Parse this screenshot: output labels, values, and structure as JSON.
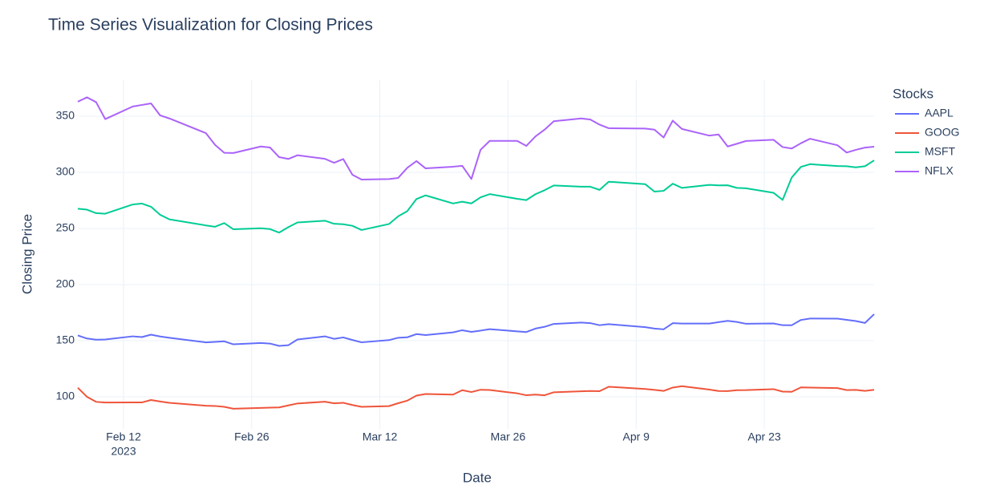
{
  "chart_data": {
    "type": "line",
    "title": "Time Series Visualization for Closing Prices",
    "x_label": "Date",
    "y_label": "Closing Price",
    "legend_title": "Stocks",
    "legend_position": "right",
    "grid": true,
    "x": [
      "2023-02-07",
      "2023-02-08",
      "2023-02-09",
      "2023-02-10",
      "2023-02-13",
      "2023-02-14",
      "2023-02-15",
      "2023-02-16",
      "2023-02-17",
      "2023-02-21",
      "2023-02-22",
      "2023-02-23",
      "2023-02-24",
      "2023-02-27",
      "2023-02-28",
      "2023-03-01",
      "2023-03-02",
      "2023-03-03",
      "2023-03-06",
      "2023-03-07",
      "2023-03-08",
      "2023-03-09",
      "2023-03-10",
      "2023-03-13",
      "2023-03-14",
      "2023-03-15",
      "2023-03-16",
      "2023-03-17",
      "2023-03-20",
      "2023-03-21",
      "2023-03-22",
      "2023-03-23",
      "2023-03-24",
      "2023-03-27",
      "2023-03-28",
      "2023-03-29",
      "2023-03-30",
      "2023-03-31",
      "2023-04-03",
      "2023-04-04",
      "2023-04-05",
      "2023-04-06",
      "2023-04-10",
      "2023-04-11",
      "2023-04-12",
      "2023-04-13",
      "2023-04-14",
      "2023-04-17",
      "2023-04-18",
      "2023-04-19",
      "2023-04-20",
      "2023-04-21",
      "2023-04-24",
      "2023-04-25",
      "2023-04-26",
      "2023-04-27",
      "2023-04-28",
      "2023-05-01",
      "2023-05-02",
      "2023-05-03",
      "2023-05-04",
      "2023-05-05"
    ],
    "xlim": [
      "2023-02-07",
      "2023-05-05"
    ],
    "xticks": [
      {
        "value": "2023-02-12",
        "label": "Feb 12"
      },
      {
        "value": "2023-02-26",
        "label": "Feb 26"
      },
      {
        "value": "2023-03-12",
        "label": "Mar 12"
      },
      {
        "value": "2023-03-26",
        "label": "Mar 26"
      },
      {
        "value": "2023-04-09",
        "label": "Apr 9"
      },
      {
        "value": "2023-04-23",
        "label": "Apr 23"
      }
    ],
    "xtick_year": "2023",
    "ylim": [
      71.4,
      382.1
    ],
    "yticks": [
      100,
      150,
      200,
      250,
      300,
      350
    ],
    "series": [
      {
        "name": "AAPL",
        "color": "#636efa",
        "values": [
          154.65,
          151.92,
          150.87,
          151.01,
          153.85,
          153.2,
          155.33,
          153.71,
          152.55,
          148.48,
          148.91,
          149.4,
          146.71,
          147.92,
          147.41,
          145.31,
          145.91,
          151.03,
          153.83,
          151.6,
          152.87,
          150.59,
          148.5,
          150.47,
          152.59,
          152.99,
          155.85,
          155.0,
          157.4,
          159.28,
          157.83,
          158.93,
          160.25,
          158.28,
          157.65,
          160.77,
          162.36,
          164.9,
          166.17,
          165.63,
          163.76,
          164.66,
          162.03,
          160.8,
          160.1,
          165.56,
          165.21,
          165.23,
          166.47,
          167.63,
          166.65,
          165.02,
          165.33,
          163.77,
          163.76,
          168.41,
          169.68,
          169.59,
          168.54,
          167.45,
          165.79,
          173.57
        ]
      },
      {
        "name": "GOOG",
        "color": "#ef553b",
        "values": [
          108.04,
          100.0,
          95.46,
          94.86,
          95.0,
          94.95,
          97.1,
          95.78,
          94.59,
          92.05,
          91.8,
          91.07,
          89.35,
          90.1,
          90.3,
          90.51,
          92.31,
          94.02,
          95.58,
          94.17,
          94.65,
          92.66,
          91.01,
          91.66,
          94.25,
          96.55,
          101.07,
          102.46,
          101.93,
          105.84,
          104.22,
          106.26,
          106.06,
          103.06,
          101.36,
          101.9,
          101.32,
          104.0,
          104.91,
          105.12,
          104.95,
          108.9,
          106.95,
          106.12,
          105.22,
          108.19,
          109.46,
          106.42,
          105.12,
          105.02,
          105.9,
          105.91,
          106.78,
          104.61,
          104.45,
          108.37,
          108.22,
          107.71,
          105.98,
          106.12,
          105.21,
          106.22
        ]
      },
      {
        "name": "MSFT",
        "color": "#00cc96",
        "values": [
          267.56,
          266.73,
          263.62,
          263.1,
          271.32,
          272.17,
          269.32,
          262.15,
          258.06,
          252.67,
          251.51,
          254.77,
          249.22,
          250.16,
          249.42,
          246.27,
          251.11,
          255.29,
          256.87,
          254.15,
          253.7,
          252.32,
          248.59,
          253.92,
          260.79,
          265.44,
          276.2,
          279.43,
          272.23,
          273.78,
          272.29,
          277.66,
          280.57,
          276.38,
          275.23,
          280.51,
          284.05,
          288.3,
          287.23,
          287.18,
          284.34,
          291.6,
          289.39,
          282.83,
          283.49,
          289.84,
          286.14,
          288.8,
          288.37,
          288.45,
          286.11,
          285.76,
          281.77,
          275.42,
          295.37,
          304.83,
          307.26,
          305.56,
          305.41,
          304.4,
          305.41,
          310.65
        ]
      },
      {
        "name": "NFLX",
        "color": "#ab63fa",
        "values": [
          362.9,
          366.8,
          362.5,
          347.4,
          358.6,
          360.0,
          361.4,
          350.7,
          348.0,
          334.9,
          324.4,
          317.4,
          317.2,
          323.0,
          322.1,
          313.5,
          311.9,
          315.2,
          312.0,
          308.5,
          311.8,
          297.8,
          293.5,
          294.0,
          295.0,
          304.0,
          310.0,
          303.5,
          305.0,
          305.8,
          294.0,
          320.0,
          328.0,
          328.0,
          323.5,
          332.0,
          338.0,
          345.5,
          348.0,
          347.0,
          342.5,
          339.3,
          339.0,
          338.0,
          331.0,
          346.0,
          338.6,
          332.7,
          333.7,
          323.0,
          325.4,
          327.9,
          329.0,
          322.5,
          321.2,
          325.9,
          329.9,
          324.1,
          317.6,
          320.0,
          322.0,
          322.8
        ]
      }
    ]
  }
}
